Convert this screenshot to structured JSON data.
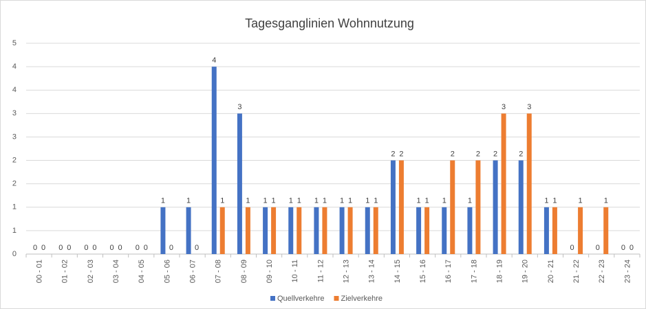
{
  "chart_data": {
    "type": "bar",
    "title": "Tagesganglinien Wohnnutzung",
    "categories": [
      "00 - 01",
      "01 - 02",
      "02 - 03",
      "03 - 04",
      "04 - 05",
      "05 - 06",
      "06 - 07",
      "07 - 08",
      "08 - 09",
      "09 - 10",
      "10 - 11",
      "11 - 12",
      "12 - 13",
      "13 - 14",
      "14 - 15",
      "15 - 16",
      "16 - 17",
      "17 - 18",
      "18 - 19",
      "19 - 20",
      "20 - 21",
      "21 - 22",
      "22 - 23",
      "23 - 24"
    ],
    "series": [
      {
        "name": "Quellverkehre",
        "color": "#4472c4",
        "values": [
          0,
          0,
          0,
          0,
          0,
          1,
          1,
          4,
          3,
          1,
          1,
          1,
          1,
          1,
          2,
          1,
          1,
          1,
          2,
          2,
          1,
          0,
          0,
          0
        ]
      },
      {
        "name": "Zielverkehre",
        "color": "#ed7d31",
        "values": [
          0,
          0,
          0,
          0,
          0,
          0,
          0,
          1,
          1,
          1,
          1,
          1,
          1,
          1,
          2,
          1,
          2,
          2,
          3,
          3,
          1,
          1,
          1,
          0
        ]
      }
    ],
    "ylim": [
      0,
      4.5
    ],
    "yticks": [
      0,
      {
        "value": 0.5,
        "label": "1"
      },
      1,
      {
        "value": 1.5,
        "label": "2"
      },
      2,
      {
        "value": 2.5,
        "label": "3"
      },
      3,
      {
        "value": 3.5,
        "label": "4"
      },
      4,
      {
        "value": 4.5,
        "label": "5"
      }
    ],
    "grid": true,
    "legend": "bottom"
  }
}
